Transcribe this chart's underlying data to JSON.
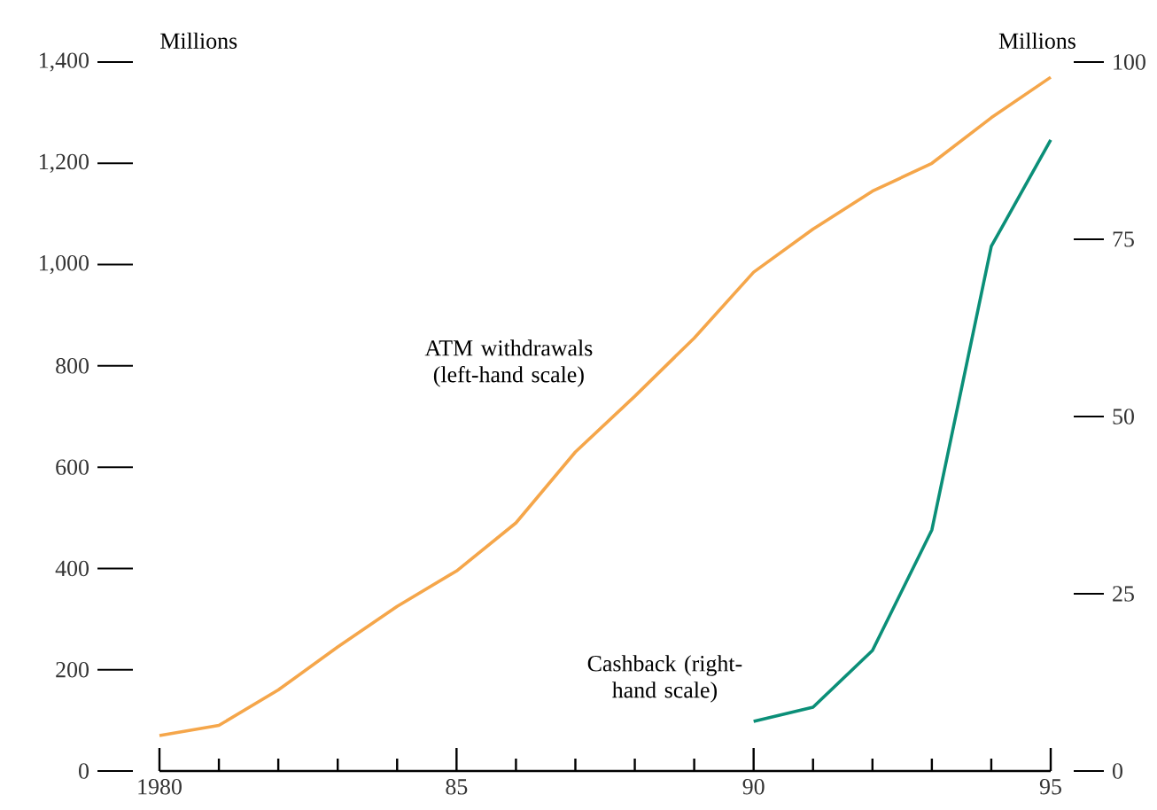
{
  "chart_data": {
    "type": "line",
    "ylabel": "Millions",
    "y2label": "Millions",
    "xlim": [
      1980,
      1995
    ],
    "xticks": [
      {
        "value": 1980,
        "label": "1980"
      },
      {
        "value": 1981,
        "label": null
      },
      {
        "value": 1982,
        "label": null
      },
      {
        "value": 1983,
        "label": null
      },
      {
        "value": 1984,
        "label": null
      },
      {
        "value": 1985,
        "label": "85"
      },
      {
        "value": 1986,
        "label": null
      },
      {
        "value": 1987,
        "label": null
      },
      {
        "value": 1988,
        "label": null
      },
      {
        "value": 1989,
        "label": null
      },
      {
        "value": 1990,
        "label": "90"
      },
      {
        "value": 1991,
        "label": null
      },
      {
        "value": 1992,
        "label": null
      },
      {
        "value": 1993,
        "label": null
      },
      {
        "value": 1994,
        "label": null
      },
      {
        "value": 1995,
        "label": "95"
      }
    ],
    "ylim": [
      0,
      1400
    ],
    "yticks": [
      0,
      200,
      400,
      600,
      800,
      {
        "value": 1000,
        "label": "1,000"
      },
      {
        "value": 1200,
        "label": "1,200"
      },
      {
        "value": 1400,
        "label": "1,400"
      }
    ],
    "y2lim": [
      0,
      100
    ],
    "y2ticks": [
      0,
      25,
      50,
      75,
      100
    ],
    "series": [
      {
        "name": "ATM withdrawals (left-hand scale)",
        "color": "#f5a64a",
        "x": [
          1980,
          1981,
          1982,
          1983,
          1984,
          1985,
          1986,
          1987,
          1988,
          1989,
          1990,
          1991,
          1992,
          1993,
          1994,
          1995
        ],
        "values": [
          70,
          90,
          160,
          245,
          325,
          395,
          490,
          630,
          740,
          855,
          985,
          1070,
          1145,
          1200,
          1290,
          1370
        ]
      },
      {
        "name": "Cashback (right-hand scale)",
        "color": "#0b8f78",
        "axis": "y2",
        "x": [
          1990,
          1991,
          1992,
          1993,
          1994,
          1995
        ],
        "values": [
          7,
          9,
          17,
          34,
          74,
          89
        ]
      }
    ]
  }
}
